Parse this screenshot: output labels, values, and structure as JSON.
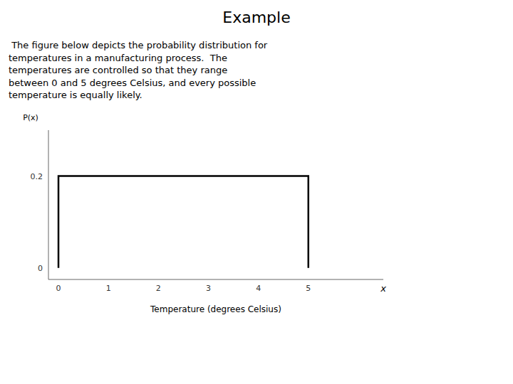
{
  "chart_data": {
    "type": "line",
    "title": "Example",
    "subtitle": " The figure below depicts the probability distribution for\ntemperatures in a manufacturing process.  The\ntemperatures are controlled so that they range\nbetween 0 and 5 degrees Celsius, and every possible\ntemperature is equally likely.",
    "ylabel": "P(x)",
    "xlabel": "Temperature (degrees Celsius)",
    "annotations": [
      "x"
    ],
    "x": [
      0,
      0,
      5,
      5
    ],
    "values": [
      0,
      0.2,
      0.2,
      0
    ],
    "color": "#000000",
    "xlim": [
      -0.2,
      6.5
    ],
    "ylim": [
      -0.025,
      0.3
    ],
    "xticks": [
      0,
      1,
      2,
      3,
      4,
      5
    ],
    "yticks": [
      0,
      0.2
    ],
    "grid": false
  }
}
